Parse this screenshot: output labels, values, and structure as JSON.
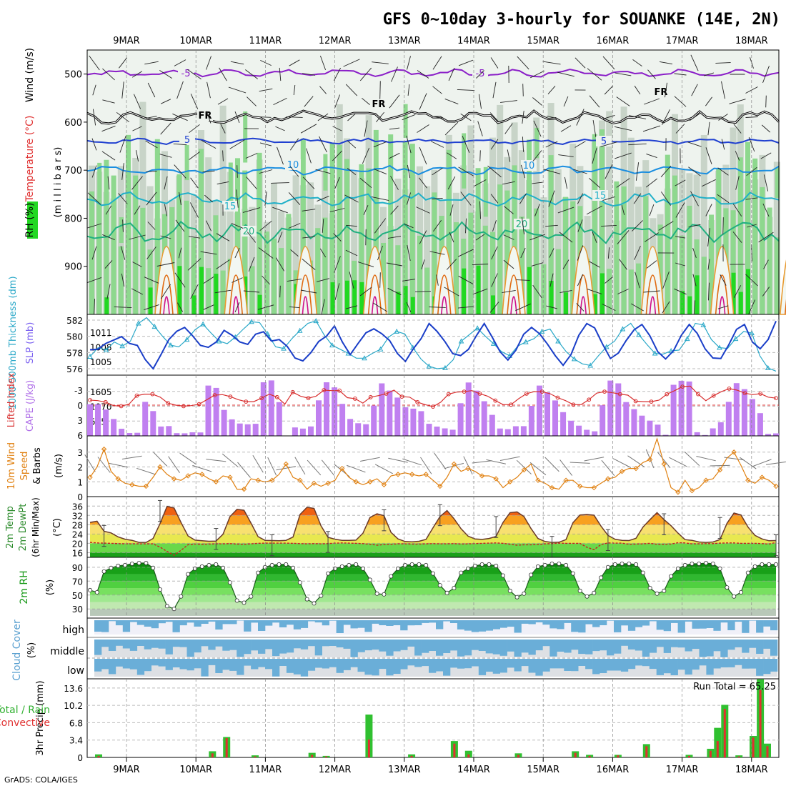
{
  "title": "GFS 0~10day 3-hourly for SOUANKE (14E, 2N)",
  "footer": "GrADS: COLA/IGES",
  "colors": {
    "rh_green": "#22d822",
    "rh_light": "#8ed88e",
    "rh_grey": "#c8d4c8",
    "thickness": "#2aa8c8",
    "slp": "#1a3ec8",
    "cape": "#c080f0",
    "lifted_index": "#d83030",
    "wind": "#e08010",
    "temp_orange": "#e86010",
    "dew": "#c82020",
    "cloud": "#6aaed8",
    "precip_total": "#30c030",
    "precip_conv": "#e03030"
  },
  "chart_data": [
    {
      "name": "upper_air",
      "type": "heatmap",
      "ylabel_parts": [
        "RH (%)",
        "Temperature (°C)",
        "Wind (m/s)"
      ],
      "ylabel2": "(m i l l i b a r s)",
      "categories": [
        "9MAR",
        "10MAR",
        "11MAR",
        "12MAR",
        "13MAR",
        "14MAR",
        "15MAR",
        "16MAR",
        "17MAR",
        "18MAR"
      ],
      "yticks": [
        500,
        600,
        700,
        800,
        900
      ],
      "ylim": [
        1000,
        450
      ],
      "contour_labels": [
        "-5",
        "-5",
        "FR",
        "FR",
        "FR",
        "5",
        "5",
        "10",
        "10",
        "15",
        "15",
        "20",
        "20"
      ]
    },
    {
      "name": "thickness_slp",
      "type": "line",
      "ylabel_left": "1000-500mb Thickness (dm)",
      "ylabel_right": "SLP (mb)",
      "yticks_left": [
        576,
        578,
        580,
        582
      ],
      "yticks_right": [
        1005,
        1008,
        1011
      ],
      "series": [
        {
          "name": "Thickness",
          "values": [
            577.5,
            578.6,
            578.3,
            579.3,
            578.8,
            579.4,
            581.6,
            582.3,
            581.2,
            580.0,
            578.9,
            578.7,
            579.6,
            580.8,
            581.5,
            580.4,
            579.4,
            579.1,
            579.9,
            580.9,
            581.8,
            581.7,
            580.3,
            578.7,
            578.5,
            579.7,
            580.7,
            581.6,
            581.9,
            580.2,
            578.9,
            578.4,
            577.9,
            577.3,
            577.3,
            577.9,
            578.4,
            579.9,
            580.6,
            580.3,
            578.6,
            577.2,
            576.3,
            576.0,
            576.1,
            577.1,
            579.4,
            580.2,
            581.0,
            580.0,
            579.1,
            578.1,
            577.6,
            578.8,
            579.3,
            579.7,
            580.6,
            580.9,
            579.4,
            578.1,
            577.2,
            576.6,
            576.4,
            577.6,
            578.7,
            579.4,
            580.9,
            581.6,
            580.2,
            579.0,
            577.9,
            577.8,
            578.2,
            578.3,
            579.7,
            581.6,
            581.4,
            579.6,
            578.6,
            578.5,
            579.7,
            580.6,
            580.4,
            577.6,
            576.1,
            575.7
          ]
        },
        {
          "name": "SLP",
          "values": [
            1007.4,
            1007.5,
            1008.7,
            1009.4,
            1010.1,
            1008.7,
            1008.3,
            1005.4,
            1003.5,
            1006.4,
            1009.5,
            1011.2,
            1012.0,
            1010.3,
            1008.3,
            1007.9,
            1009.0,
            1011.4,
            1010.4,
            1009.0,
            1008.5,
            1010.6,
            1011.1,
            1009.2,
            1009.5,
            1008.1,
            1005.7,
            1005.1,
            1006.8,
            1009.1,
            1010.2,
            1012.3,
            1009.0,
            1006.4,
            1008.7,
            1010.9,
            1011.7,
            1010.7,
            1009.3,
            1006.6,
            1005.0,
            1007.6,
            1009.7,
            1012.8,
            1011.2,
            1009.1,
            1006.6,
            1006.2,
            1007.5,
            1010.3,
            1012.8,
            1010.0,
            1007.0,
            1005.3,
            1007.3,
            1010.6,
            1012.0,
            1010.7,
            1008.6,
            1006.2,
            1004.2,
            1006.4,
            1010.4,
            1012.8,
            1011.9,
            1008.6,
            1005.6,
            1006.7,
            1009.3,
            1011.5,
            1012.6,
            1010.3,
            1007.0,
            1005.5,
            1007.2,
            1010.4,
            1012.6,
            1010.8,
            1007.6,
            1005.7,
            1005.6,
            1008.4,
            1011.6,
            1012.6,
            1009.0,
            1007.6,
            1009.5,
            1013.3
          ]
        }
      ]
    },
    {
      "name": "cape_li",
      "type": "bar",
      "ylabel_left": "Lifted Index",
      "ylabel_right": "CAPE (J/kg)",
      "yticks_left": [
        "-3",
        "0",
        "3",
        "6"
      ],
      "yticks_right": [
        "535",
        "1070",
        "1605"
      ],
      "series": [
        {
          "name": "CAPE",
          "values": [
            1141,
            1143,
            950,
            609,
            257,
            103,
            112,
            1227,
            894,
            337,
            353,
            98,
            94,
            129,
            123,
            1814,
            1730,
            935,
            595,
            446,
            417,
            437,
            1935,
            2000,
            1217,
            13,
            304,
            262,
            340,
            1282,
            1934,
            1751,
            1155,
            611,
            456,
            420,
            1093,
            1895,
            1634,
            1383,
            1033,
            983,
            891,
            436,
            334,
            270,
            223,
            1178,
            1927,
            1632,
            1251,
            759,
            266,
            242,
            349,
            350,
            1082,
            1816,
            1574,
            1280,
            857,
            546,
            369,
            218,
            165,
            1103,
            1996,
            1896,
            1219,
            964,
            730,
            549,
            405,
            38,
            1843,
            1987,
            1962,
            131,
            32,
            270,
            492,
            1228,
            1902,
            1686,
            1329,
            820,
            73,
            89
          ]
        },
        {
          "name": "Lifted Index",
          "values": [
            -1.0,
            -0.9,
            -0.6,
            0.1,
            0.2,
            -0.2,
            -1.9,
            -2.2,
            -2.2,
            -1.6,
            -0.4,
            0.0,
            0.2,
            0.1,
            -0.2,
            -1.1,
            -2.0,
            -2.1,
            -1.7,
            -1.1,
            -0.7,
            -0.7,
            -1.4,
            -2.2,
            -1.6,
            -0.2,
            -2.6,
            -1.8,
            -1.4,
            -1.8,
            -3.0,
            -2.9,
            -2.9,
            -1.5,
            -1.3,
            -0.4,
            -1.6,
            -1.9,
            -2.3,
            -3.0,
            -1.7,
            -1.6,
            -0.6,
            -0.1,
            0.3,
            -0.6,
            -2.2,
            -2.6,
            -2.7,
            -2.9,
            -2.3,
            -1.8,
            -0.9,
            -0.1,
            -0.1,
            -1.3,
            -2.3,
            -2.7,
            -2.7,
            -2.3,
            -1.5,
            -0.9,
            -0.1,
            -0.1,
            -1.1,
            -2.4,
            -2.7,
            -2.5,
            -2.2,
            -2.0,
            -0.8,
            -0.7,
            -0.7,
            -1.0,
            -2.2,
            -2.9,
            -3.7,
            -3.8,
            -2.2,
            -0.9,
            -1.9,
            -2.7,
            -3.3,
            -3.0,
            -2.4,
            -2.1,
            -2.3,
            -1.6,
            -1.4
          ]
        }
      ]
    },
    {
      "name": "wind10m",
      "type": "line",
      "ylabel_parts": [
        "10m Wind",
        "Speed",
        "& Barbs"
      ],
      "unit": "(m/s)",
      "yticks": [
        0,
        1,
        2,
        3
      ],
      "series": [
        {
          "name": "10m Wind Speed",
          "values": [
            1.3,
            2.0,
            3.2,
            1.7,
            1.2,
            0.9,
            0.8,
            0.7,
            0.7,
            1.3,
            2.0,
            1.5,
            1.2,
            1.1,
            1.4,
            1.6,
            1.5,
            1.2,
            1.0,
            1.4,
            1.3,
            0.5,
            0.5,
            1.2,
            1.1,
            1.0,
            1.1,
            1.5,
            2.2,
            1.3,
            1.1,
            0.5,
            0.9,
            0.7,
            0.9,
            1.1,
            1.9,
            1.3,
            1.0,
            0.8,
            1.0,
            1.2,
            0.8,
            1.4,
            1.5,
            1.6,
            1.5,
            1.4,
            1.5,
            1.1,
            0.7,
            1.3,
            2.2,
            1.7,
            1.9,
            1.7,
            1.4,
            1.4,
            1.2,
            0.6,
            1.0,
            1.3,
            1.8,
            2.2,
            1.1,
            0.9,
            0.6,
            0.5,
            1.1,
            1.1,
            0.7,
            0.6,
            0.6,
            0.9,
            1.2,
            1.3,
            1.7,
            1.9,
            1.9,
            2.3,
            2.5,
            3.9,
            2.2,
            0.6,
            0.3,
            1.1,
            0.4,
            0.6,
            1.1,
            1.2,
            1.8,
            2.6,
            3.0,
            2.1,
            1.1,
            0.9,
            1.3,
            1.1,
            0.7
          ]
        }
      ]
    },
    {
      "name": "temp2m",
      "type": "area",
      "ylabel_parts": [
        "2m Temp",
        "2m DewPt",
        "(6hr Min/Max)"
      ],
      "unit": "(°C)",
      "yticks": [
        16,
        20,
        24,
        28,
        32,
        36
      ],
      "series": [
        {
          "name": "2m Temp",
          "values": [
            29.0,
            29.5,
            25.2,
            24.5,
            22.8,
            21.8,
            21.3,
            20.4,
            20.4,
            22.1,
            28.5,
            35.9,
            35.2,
            29.0,
            23.2,
            21.4,
            21.1,
            20.9,
            21.0,
            23.9,
            31.5,
            34.6,
            34.2,
            28.7,
            22.9,
            21.3,
            21.2,
            21.1,
            21.3,
            22.7,
            32.4,
            35.5,
            35.0,
            27.5,
            22.6,
            21.8,
            21.3,
            21.3,
            21.4,
            24.4,
            31.1,
            32.7,
            31.9,
            24.7,
            21.9,
            20.8,
            20.7,
            20.9,
            21.7,
            26.7,
            31.5,
            34.1,
            30.6,
            26.3,
            23.1,
            21.9,
            21.7,
            22.1,
            23.0,
            29.0,
            33.2,
            33.5,
            31.5,
            26.4,
            22.1,
            20.8,
            20.4,
            20.5,
            21.6,
            28.9,
            32.2,
            32.4,
            32.1,
            27.4,
            23.4,
            21.8,
            21.3,
            21.2,
            22.2,
            27.0,
            30.2,
            33.2,
            30.2,
            27.6,
            24.4,
            21.6,
            21.3,
            20.6,
            20.4,
            20.6,
            21.6,
            28.6,
            33.0,
            32.2,
            27.0,
            23.4,
            21.9,
            21.1,
            21.2
          ]
        },
        {
          "name": "2m DewPt",
          "values": [
            20.4,
            20.2,
            20.1,
            20.0,
            19.9,
            19.8,
            19.8,
            19.8,
            19.8,
            19.8,
            18.4,
            16.5,
            14.9,
            17.0,
            19.4,
            19.7,
            19.6,
            19.7,
            19.8,
            19.8,
            19.9,
            19.7,
            19.6,
            19.8,
            20.0,
            20.1,
            20.1,
            20.1,
            20.1,
            20.0,
            19.9,
            19.8,
            19.9,
            19.8,
            19.9,
            20.1,
            20.2,
            20.1,
            20.0,
            19.9,
            19.6,
            19.2,
            19.5,
            19.6,
            19.8,
            19.8,
            19.7,
            19.7,
            19.8,
            19.9,
            19.8,
            19.8,
            19.9,
            19.7,
            19.8,
            19.9,
            20.0,
            20.1,
            20.2,
            20.0,
            19.6,
            19.2,
            19.4,
            19.4,
            19.5,
            19.8,
            19.9,
            20.1,
            20.0,
            20.0,
            20.0,
            18.3,
            17.3,
            19.5,
            20.2,
            20.1,
            20.1,
            19.6,
            19.7,
            19.8,
            20.0,
            19.6,
            19.6,
            19.7,
            20.3,
            20.2,
            19.8,
            19.8,
            19.9,
            19.9,
            20.1,
            20.2,
            20.2,
            20.0,
            20.0,
            20.0,
            19.9,
            19.7,
            20.4
          ]
        }
      ]
    },
    {
      "name": "rh2m",
      "type": "area",
      "ylabel": "2m RH",
      "unit": "(%)",
      "yticks": [
        30,
        50,
        70,
        90
      ],
      "series": [
        {
          "name": "2m RH",
          "values": [
            57,
            54,
            84,
            89,
            92,
            93,
            95,
            96,
            96,
            89,
            58,
            34,
            30,
            48,
            80,
            88,
            91,
            93,
            94,
            89,
            68,
            42,
            39,
            48,
            82,
            90,
            93,
            94,
            94,
            89,
            68,
            44,
            38,
            49,
            81,
            88,
            91,
            93,
            94,
            88,
            72,
            52,
            51,
            77,
            88,
            93,
            94,
            94,
            93,
            81,
            64,
            53,
            60,
            82,
            88,
            92,
            94,
            94,
            92,
            78,
            56,
            47,
            52,
            79,
            91,
            93,
            95,
            95,
            93,
            81,
            56,
            48,
            53,
            75,
            90,
            94,
            95,
            95,
            94,
            82,
            60,
            52,
            56,
            77,
            88,
            93,
            95,
            95,
            96,
            95,
            88,
            61,
            48,
            54,
            82,
            91,
            94,
            94,
            94
          ]
        }
      ]
    },
    {
      "name": "cloud_cover",
      "type": "bar",
      "ylabel": "Cloud Cover",
      "unit": "(%)",
      "levels": [
        "high",
        "middle",
        "low"
      ]
    },
    {
      "name": "precip",
      "type": "bar",
      "ylabel_parts": [
        "Total / Rain",
        "Convective"
      ],
      "ylabel2": "3hr Precip (mm)",
      "yticks": [
        "0",
        "3.4",
        "6.8",
        "10.2",
        "13.6"
      ],
      "annotation": "Run Total = 65.25",
      "categories": [
        "9MAR",
        "10MAR",
        "11MAR",
        "12MAR",
        "13MAR",
        "14MAR",
        "15MAR",
        "16MAR",
        "17MAR",
        "18MAR"
      ]
    }
  ]
}
